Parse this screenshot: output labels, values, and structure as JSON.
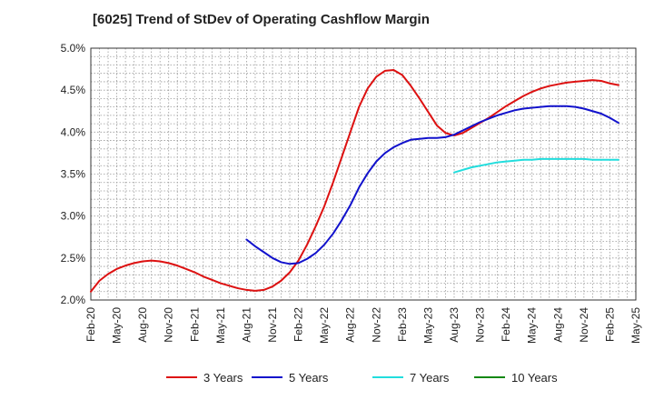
{
  "chart_data": {
    "type": "line",
    "title": "[6025]  Trend of StDev of Operating Cashflow Margin",
    "x_ticks": [
      "Feb-20",
      "May-20",
      "Aug-20",
      "Nov-20",
      "Feb-21",
      "May-21",
      "Aug-21",
      "Nov-21",
      "Feb-22",
      "May-22",
      "Aug-22",
      "Nov-22",
      "Feb-23",
      "May-23",
      "Aug-23",
      "Nov-23",
      "Feb-24",
      "May-24",
      "Aug-24",
      "Nov-24",
      "Feb-25",
      "May-25"
    ],
    "y_ticks": [
      "2.0%",
      "2.5%",
      "3.0%",
      "3.5%",
      "4.0%",
      "4.5%",
      "5.0%"
    ],
    "ylim": [
      2.0,
      5.0
    ],
    "y_unit": "%",
    "grid": true,
    "legend_position": "bottom",
    "series": [
      {
        "name": "3 Years",
        "color": "#dd1111",
        "points": [
          [
            "Feb-20",
            2.1
          ],
          [
            "Mar-20",
            2.23
          ],
          [
            "Apr-20",
            2.31
          ],
          [
            "May-20",
            2.37
          ],
          [
            "Jun-20",
            2.41
          ],
          [
            "Jul-20",
            2.44
          ],
          [
            "Aug-20",
            2.46
          ],
          [
            "Sep-20",
            2.47
          ],
          [
            "Oct-20",
            2.46
          ],
          [
            "Nov-20",
            2.44
          ],
          [
            "Dec-20",
            2.41
          ],
          [
            "Jan-21",
            2.37
          ],
          [
            "Feb-21",
            2.33
          ],
          [
            "Mar-21",
            2.28
          ],
          [
            "Apr-21",
            2.24
          ],
          [
            "May-21",
            2.2
          ],
          [
            "Jun-21",
            2.17
          ],
          [
            "Jul-21",
            2.14
          ],
          [
            "Aug-21",
            2.12
          ],
          [
            "Sep-21",
            2.11
          ],
          [
            "Oct-21",
            2.12
          ],
          [
            "Nov-21",
            2.16
          ],
          [
            "Dec-21",
            2.23
          ],
          [
            "Jan-22",
            2.33
          ],
          [
            "Feb-22",
            2.47
          ],
          [
            "Mar-22",
            2.66
          ],
          [
            "Apr-22",
            2.88
          ],
          [
            "May-22",
            3.12
          ],
          [
            "Jun-22",
            3.4
          ],
          [
            "Jul-22",
            3.7
          ],
          [
            "Aug-22",
            4.0
          ],
          [
            "Sep-22",
            4.3
          ],
          [
            "Oct-22",
            4.52
          ],
          [
            "Nov-22",
            4.66
          ],
          [
            "Dec-22",
            4.73
          ],
          [
            "Jan-23",
            4.74
          ],
          [
            "Feb-23",
            4.68
          ],
          [
            "Mar-23",
            4.55
          ],
          [
            "Apr-23",
            4.4
          ],
          [
            "May-23",
            4.24
          ],
          [
            "Jun-23",
            4.08
          ],
          [
            "Jul-23",
            3.99
          ],
          [
            "Aug-23",
            3.96
          ],
          [
            "Sep-23",
            3.99
          ],
          [
            "Oct-23",
            4.05
          ],
          [
            "Nov-23",
            4.11
          ],
          [
            "Dec-23",
            4.17
          ],
          [
            "Jan-24",
            4.24
          ],
          [
            "Feb-24",
            4.31
          ],
          [
            "Mar-24",
            4.37
          ],
          [
            "Apr-24",
            4.43
          ],
          [
            "May-24",
            4.48
          ],
          [
            "Jun-24",
            4.52
          ],
          [
            "Jul-24",
            4.55
          ],
          [
            "Aug-24",
            4.57
          ],
          [
            "Sep-24",
            4.59
          ],
          [
            "Oct-24",
            4.6
          ],
          [
            "Nov-24",
            4.61
          ],
          [
            "Dec-24",
            4.62
          ],
          [
            "Jan-25",
            4.61
          ],
          [
            "Feb-25",
            4.58
          ],
          [
            "Mar-25",
            4.56
          ]
        ]
      },
      {
        "name": "5 Years",
        "color": "#1111cc",
        "points": [
          [
            "Aug-21",
            2.72
          ],
          [
            "Sep-21",
            2.64
          ],
          [
            "Oct-21",
            2.57
          ],
          [
            "Nov-21",
            2.5
          ],
          [
            "Dec-21",
            2.45
          ],
          [
            "Jan-22",
            2.43
          ],
          [
            "Feb-22",
            2.44
          ],
          [
            "Mar-22",
            2.49
          ],
          [
            "Apr-22",
            2.56
          ],
          [
            "May-22",
            2.66
          ],
          [
            "Jun-22",
            2.79
          ],
          [
            "Jul-22",
            2.95
          ],
          [
            "Aug-22",
            3.13
          ],
          [
            "Sep-22",
            3.34
          ],
          [
            "Oct-22",
            3.51
          ],
          [
            "Nov-22",
            3.65
          ],
          [
            "Dec-22",
            3.75
          ],
          [
            "Jan-23",
            3.82
          ],
          [
            "Feb-23",
            3.87
          ],
          [
            "Mar-23",
            3.91
          ],
          [
            "Apr-23",
            3.92
          ],
          [
            "May-23",
            3.93
          ],
          [
            "Jun-23",
            3.93
          ],
          [
            "Jul-23",
            3.94
          ],
          [
            "Aug-23",
            3.97
          ],
          [
            "Sep-23",
            4.02
          ],
          [
            "Oct-23",
            4.07
          ],
          [
            "Nov-23",
            4.12
          ],
          [
            "Dec-23",
            4.16
          ],
          [
            "Jan-24",
            4.2
          ],
          [
            "Feb-24",
            4.23
          ],
          [
            "Mar-24",
            4.26
          ],
          [
            "Apr-24",
            4.28
          ],
          [
            "May-24",
            4.29
          ],
          [
            "Jun-24",
            4.3
          ],
          [
            "Jul-24",
            4.31
          ],
          [
            "Aug-24",
            4.31
          ],
          [
            "Sep-24",
            4.31
          ],
          [
            "Oct-24",
            4.3
          ],
          [
            "Nov-24",
            4.28
          ],
          [
            "Dec-24",
            4.25
          ],
          [
            "Jan-25",
            4.22
          ],
          [
            "Feb-25",
            4.17
          ],
          [
            "Mar-25",
            4.11
          ]
        ]
      },
      {
        "name": "7 Years",
        "color": "#22dddd",
        "points": [
          [
            "Aug-23",
            3.52
          ],
          [
            "Sep-23",
            3.55
          ],
          [
            "Oct-23",
            3.58
          ],
          [
            "Nov-23",
            3.6
          ],
          [
            "Dec-23",
            3.62
          ],
          [
            "Jan-24",
            3.64
          ],
          [
            "Feb-24",
            3.65
          ],
          [
            "Mar-24",
            3.66
          ],
          [
            "Apr-24",
            3.67
          ],
          [
            "May-24",
            3.67
          ],
          [
            "Jun-24",
            3.68
          ],
          [
            "Jul-24",
            3.68
          ],
          [
            "Aug-24",
            3.68
          ],
          [
            "Sep-24",
            3.68
          ],
          [
            "Oct-24",
            3.68
          ],
          [
            "Nov-24",
            3.68
          ],
          [
            "Dec-24",
            3.67
          ],
          [
            "Jan-25",
            3.67
          ],
          [
            "Feb-25",
            3.67
          ],
          [
            "Mar-25",
            3.67
          ]
        ]
      },
      {
        "name": "10 Years",
        "color": "#118811",
        "points": []
      }
    ]
  }
}
